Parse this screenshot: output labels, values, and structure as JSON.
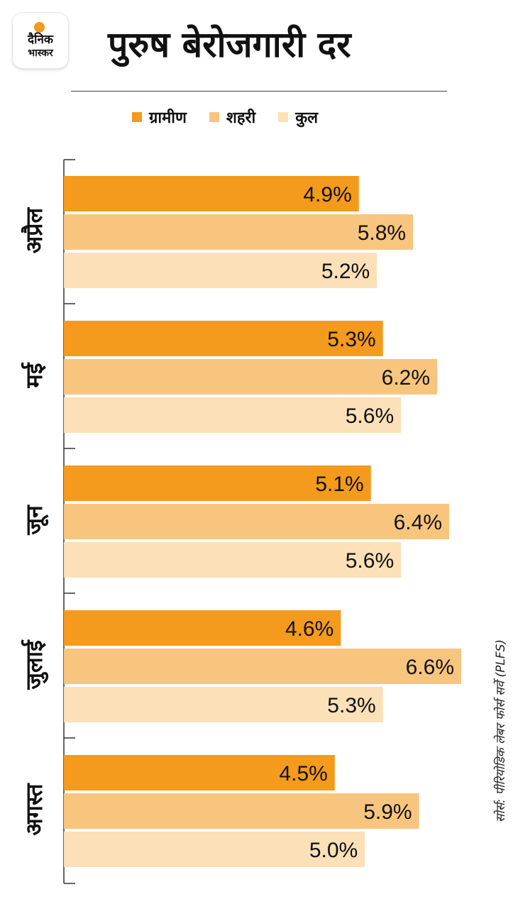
{
  "brand": {
    "line1": "दैनिक",
    "line2": "भास्कर",
    "accent_color": "#f49a1c"
  },
  "header": {
    "title": "पुरुष बेरोजगारी दर"
  },
  "legend": [
    {
      "label": "ग्रामीण",
      "color": "#f49a1c"
    },
    {
      "label": "शहरी",
      "color": "#f8c57e"
    },
    {
      "label": "कुल",
      "color": "#fbe0b8"
    }
  ],
  "chart_data": {
    "type": "bar",
    "orientation": "horizontal",
    "title": "पुरुष बेरोजगारी दर",
    "categories": [
      "अप्रैल",
      "मई",
      "जून",
      "जुलाई",
      "अगस्त"
    ],
    "series": [
      {
        "name": "ग्रामीण",
        "color": "#f49a1c",
        "values": [
          4.9,
          5.3,
          5.1,
          4.6,
          4.5
        ],
        "labels": [
          "4.9%",
          "5.3%",
          "5.1%",
          "4.6%",
          "4.5%"
        ]
      },
      {
        "name": "शहरी",
        "color": "#f8c57e",
        "values": [
          5.8,
          6.2,
          6.4,
          6.6,
          5.9
        ],
        "labels": [
          "5.8%",
          "6.2%",
          "6.4%",
          "6.6%",
          "5.9%"
        ]
      },
      {
        "name": "कुल",
        "color": "#fbe0b8",
        "values": [
          5.2,
          5.6,
          5.6,
          5.3,
          5.0
        ],
        "labels": [
          "5.2%",
          "5.6%",
          "5.6%",
          "5.3%",
          "5.0%"
        ]
      }
    ],
    "value_unit": "%",
    "xlim": [
      0,
      6.6
    ],
    "legend_position": "top",
    "grid": false
  },
  "source_note": "सोर्स: पीरियोडिक लेबर फोर्स सर्वे (PLFS)"
}
